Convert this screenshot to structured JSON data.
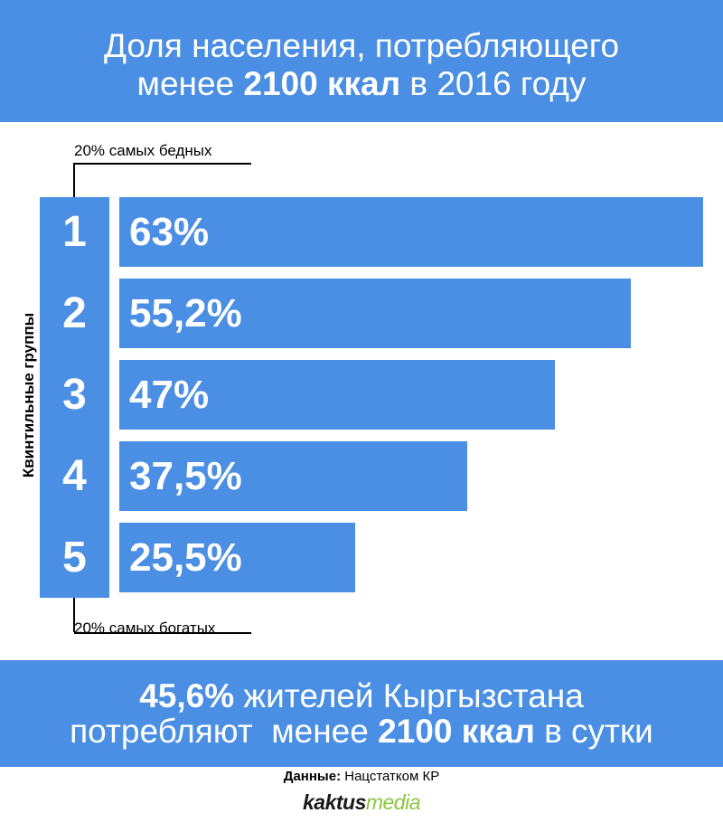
{
  "header": {
    "line1": "Доля населения, потребляющего",
    "line2_prefix": "менее ",
    "line2_bold": "2100 ккал",
    "line2_suffix": " в 2016 году"
  },
  "chart_data": {
    "type": "bar",
    "orientation": "horizontal",
    "title": "Доля населения, потребляющего менее 2100 ккал в 2016 году",
    "ylabel": "Квинтильные группы",
    "categories": [
      "1",
      "2",
      "3",
      "4",
      "5"
    ],
    "values": [
      63,
      55.2,
      47,
      37.5,
      25.5
    ],
    "value_labels": [
      "63%",
      "55,2%",
      "47%",
      "37,5%",
      "25,5%"
    ],
    "annotations": {
      "top": "20% самых бедных",
      "bottom": "20% самых богатых"
    },
    "bar_color": "#4a8fe3"
  },
  "footer": {
    "line1_bold": "45,6%",
    "line1_rest": " жителей Кыргызстана",
    "line2_prefix": "потребляют  менее ",
    "line2_bold": "2100 ккал",
    "line2_suffix": " в сутки"
  },
  "source": {
    "label": "Данные:",
    "text": " Нацстатком КР"
  },
  "logo": {
    "part1": "kaktus",
    "part2": "media"
  },
  "colors": {
    "accent": "#4a8fe3",
    "logo_green": "#8bc53f"
  }
}
